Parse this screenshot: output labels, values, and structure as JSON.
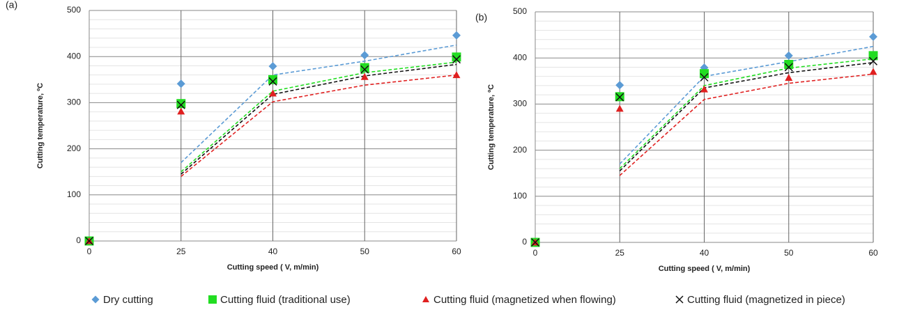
{
  "chart_data": [
    {
      "type": "scatter",
      "panel_label": "(a)",
      "x_label": "Cutting speed ( V, m/min)",
      "y_label": "Cutting temperature, ºC",
      "categories": [
        0,
        25,
        40,
        50,
        60
      ],
      "ylim": [
        0,
        500
      ],
      "yticks": [
        0,
        100,
        200,
        300,
        400,
        500
      ],
      "grid": true,
      "minor_grid": true,
      "series": [
        {
          "name": "Dry cutting",
          "color": "#5b9bd5",
          "marker": "diamond",
          "values": [
            0,
            341,
            379,
            403,
            446
          ],
          "trendline": [
            null,
            170,
            360,
            390,
            425
          ]
        },
        {
          "name": "Cutting fluid (traditional use)",
          "color": "#22dd22",
          "marker": "square",
          "values": [
            0,
            298,
            350,
            376,
            399
          ],
          "trendline": [
            null,
            150,
            325,
            365,
            388
          ]
        },
        {
          "name": "Cutting fluid (magnetized when flowing)",
          "color": "#e02020",
          "marker": "triangle",
          "values": [
            0,
            281,
            320,
            356,
            360
          ],
          "trendline": [
            null,
            140,
            302,
            338,
            360
          ]
        },
        {
          "name": "Cutting fluid (magnetized in piece)",
          "color": "#111111",
          "marker": "x",
          "values": [
            0,
            295,
            346,
            372,
            394
          ],
          "trendline": [
            null,
            145,
            318,
            358,
            383
          ]
        }
      ]
    },
    {
      "type": "scatter",
      "panel_label": "(b)",
      "x_label": "Cutting speed ( V, m/min)",
      "y_label": "Cutting temperature, ºC",
      "categories": [
        0,
        25,
        40,
        50,
        60
      ],
      "ylim": [
        0,
        500
      ],
      "yticks": [
        0,
        100,
        200,
        300,
        400,
        500
      ],
      "grid": true,
      "minor_grid": true,
      "series": [
        {
          "color": "#5b9bd5",
          "marker": "diamond",
          "values": [
            0,
            341,
            379,
            405,
            446
          ],
          "trendline": [
            null,
            170,
            360,
            392,
            425
          ]
        },
        {
          "color": "#22dd22",
          "marker": "square",
          "values": [
            0,
            316,
            366,
            386,
            405
          ],
          "trendline": [
            null,
            160,
            340,
            378,
            398
          ]
        },
        {
          "color": "#e02020",
          "marker": "triangle",
          "values": [
            0,
            290,
            332,
            357,
            370
          ],
          "trendline": [
            null,
            145,
            310,
            345,
            365
          ]
        },
        {
          "color": "#111111",
          "marker": "x",
          "values": [
            0,
            315,
            358,
            380,
            393
          ],
          "trendline": [
            null,
            155,
            335,
            368,
            390
          ]
        }
      ]
    }
  ]
}
